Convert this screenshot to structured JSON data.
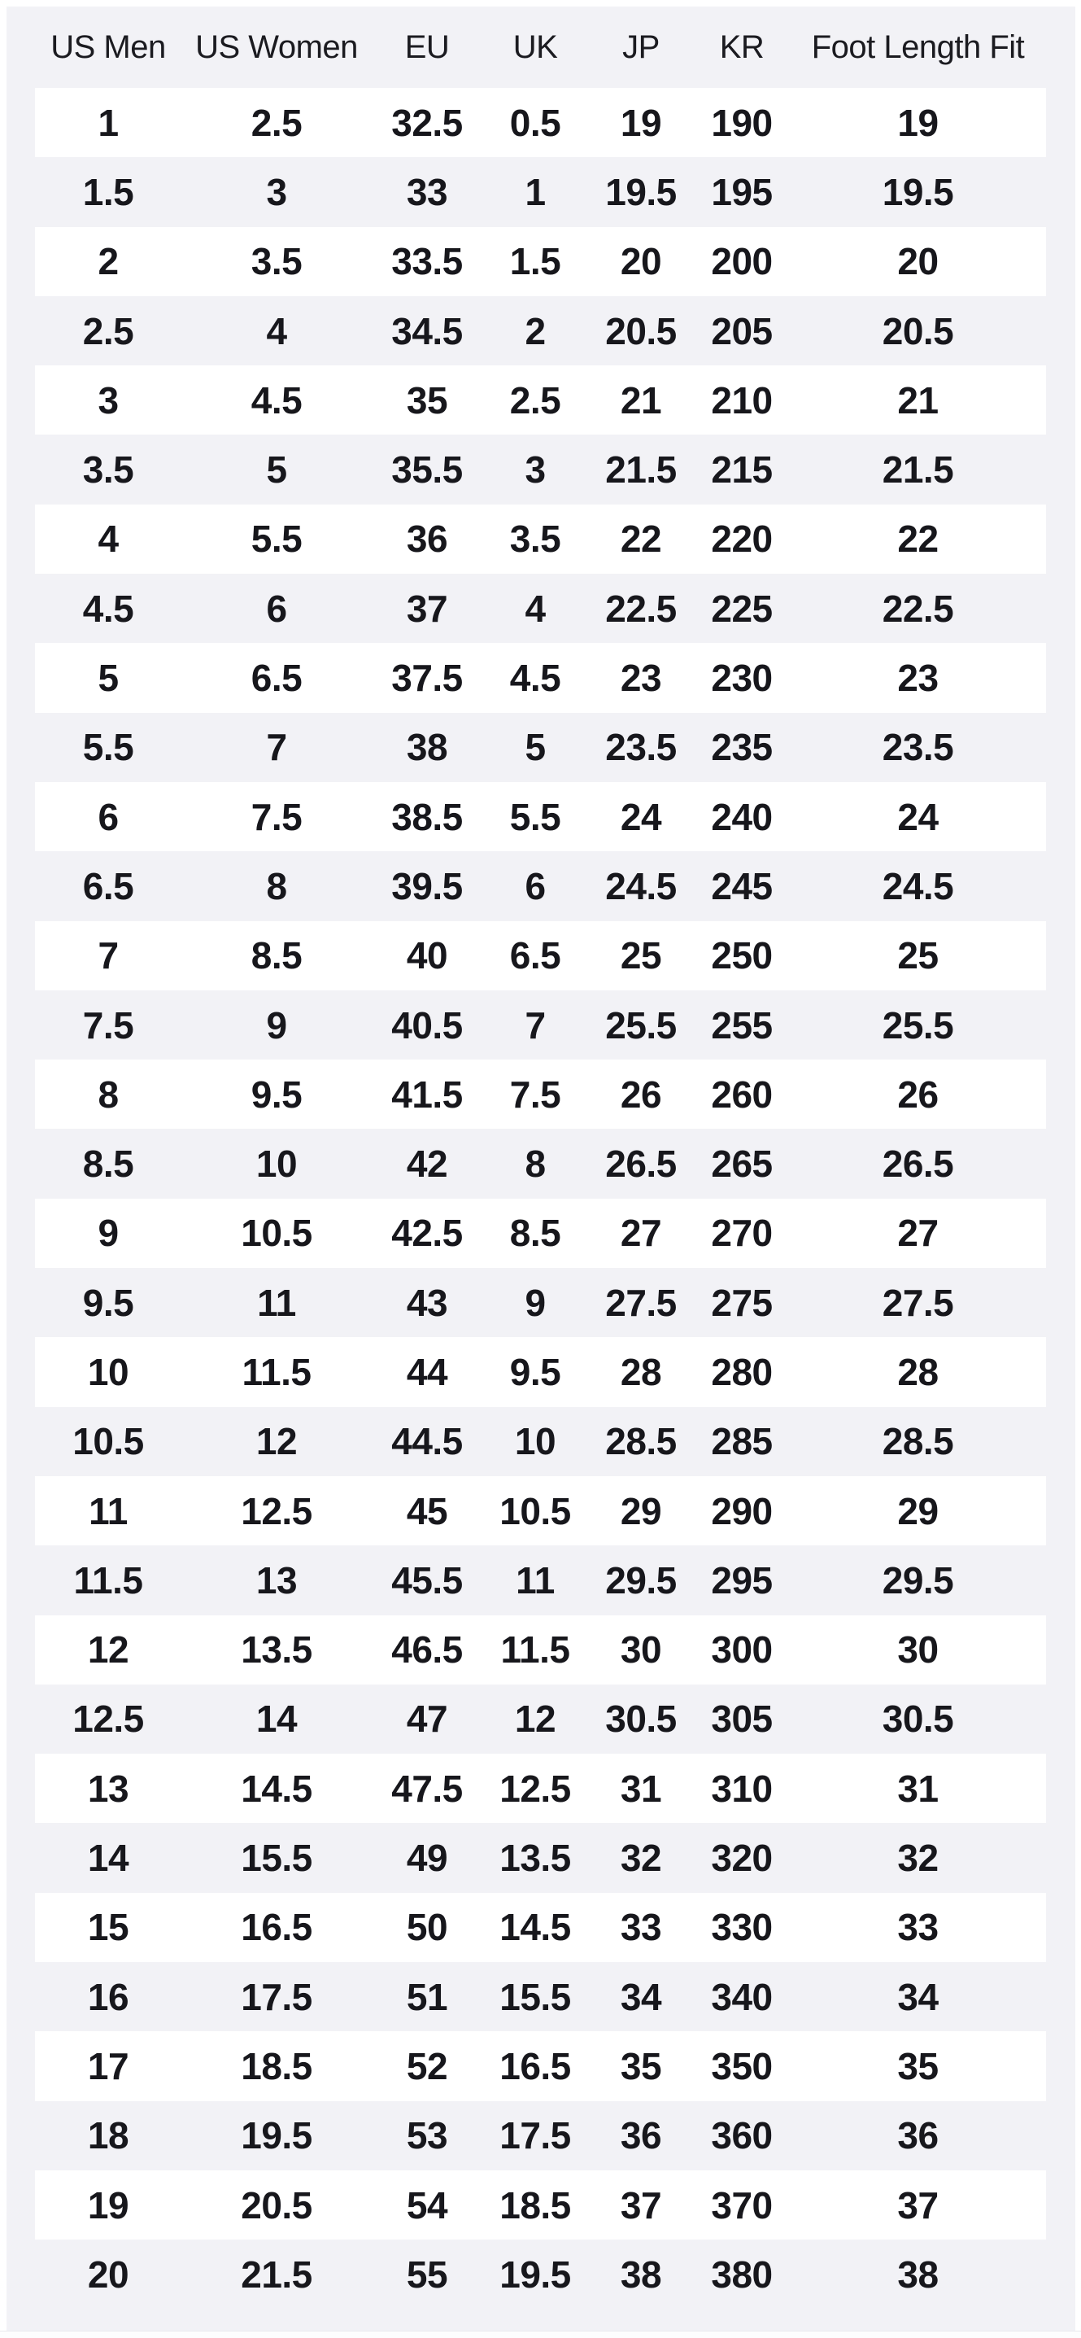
{
  "table": {
    "headers": [
      "US Men",
      "US Women",
      "EU",
      "UK",
      "JP",
      "KR",
      "Foot Length Fit"
    ],
    "rows": [
      [
        "1",
        "2.5",
        "32.5",
        "0.5",
        "19",
        "190",
        "19"
      ],
      [
        "1.5",
        "3",
        "33",
        "1",
        "19.5",
        "195",
        "19.5"
      ],
      [
        "2",
        "3.5",
        "33.5",
        "1.5",
        "20",
        "200",
        "20"
      ],
      [
        "2.5",
        "4",
        "34.5",
        "2",
        "20.5",
        "205",
        "20.5"
      ],
      [
        "3",
        "4.5",
        "35",
        "2.5",
        "21",
        "210",
        "21"
      ],
      [
        "3.5",
        "5",
        "35.5",
        "3",
        "21.5",
        "215",
        "21.5"
      ],
      [
        "4",
        "5.5",
        "36",
        "3.5",
        "22",
        "220",
        "22"
      ],
      [
        "4.5",
        "6",
        "37",
        "4",
        "22.5",
        "225",
        "22.5"
      ],
      [
        "5",
        "6.5",
        "37.5",
        "4.5",
        "23",
        "230",
        "23"
      ],
      [
        "5.5",
        "7",
        "38",
        "5",
        "23.5",
        "235",
        "23.5"
      ],
      [
        "6",
        "7.5",
        "38.5",
        "5.5",
        "24",
        "240",
        "24"
      ],
      [
        "6.5",
        "8",
        "39.5",
        "6",
        "24.5",
        "245",
        "24.5"
      ],
      [
        "7",
        "8.5",
        "40",
        "6.5",
        "25",
        "250",
        "25"
      ],
      [
        "7.5",
        "9",
        "40.5",
        "7",
        "25.5",
        "255",
        "25.5"
      ],
      [
        "8",
        "9.5",
        "41.5",
        "7.5",
        "26",
        "260",
        "26"
      ],
      [
        "8.5",
        "10",
        "42",
        "8",
        "26.5",
        "265",
        "26.5"
      ],
      [
        "9",
        "10.5",
        "42.5",
        "8.5",
        "27",
        "270",
        "27"
      ],
      [
        "9.5",
        "11",
        "43",
        "9",
        "27.5",
        "275",
        "27.5"
      ],
      [
        "10",
        "11.5",
        "44",
        "9.5",
        "28",
        "280",
        "28"
      ],
      [
        "10.5",
        "12",
        "44.5",
        "10",
        "28.5",
        "285",
        "28.5"
      ],
      [
        "11",
        "12.5",
        "45",
        "10.5",
        "29",
        "290",
        "29"
      ],
      [
        "11.5",
        "13",
        "45.5",
        "11",
        "29.5",
        "295",
        "29.5"
      ],
      [
        "12",
        "13.5",
        "46.5",
        "11.5",
        "30",
        "300",
        "30"
      ],
      [
        "12.5",
        "14",
        "47",
        "12",
        "30.5",
        "305",
        "30.5"
      ],
      [
        "13",
        "14.5",
        "47.5",
        "12.5",
        "31",
        "310",
        "31"
      ],
      [
        "14",
        "15.5",
        "49",
        "13.5",
        "32",
        "320",
        "32"
      ],
      [
        "15",
        "16.5",
        "50",
        "14.5",
        "33",
        "330",
        "33"
      ],
      [
        "16",
        "17.5",
        "51",
        "15.5",
        "34",
        "340",
        "34"
      ],
      [
        "17",
        "18.5",
        "52",
        "16.5",
        "35",
        "350",
        "35"
      ],
      [
        "18",
        "19.5",
        "53",
        "17.5",
        "36",
        "360",
        "36"
      ],
      [
        "19",
        "20.5",
        "54",
        "18.5",
        "37",
        "370",
        "37"
      ],
      [
        "20",
        "21.5",
        "55",
        "19.5",
        "38",
        "380",
        "38"
      ]
    ]
  },
  "colors": {
    "page_background": "#ffffff",
    "table_background": "#f2f2f6",
    "row_alternate_white": "#ffffff",
    "header_text": "#1b1b20",
    "cell_text": "#17171c"
  }
}
